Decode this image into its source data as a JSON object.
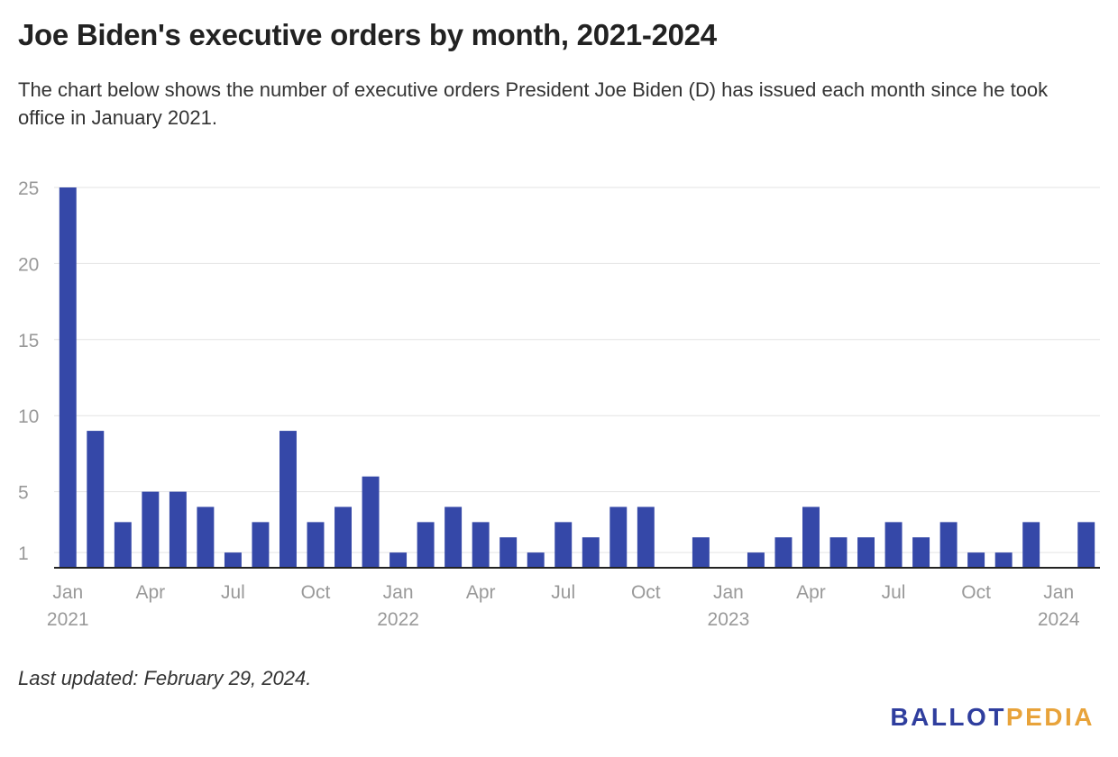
{
  "header": {
    "title": "Joe Biden's executive orders by month, 2021-2024",
    "subtitle": "The chart below shows the number of executive orders President Joe Biden (D) has issued each month since he took office in January 2021."
  },
  "footer": {
    "updated": "Last updated: February 29, 2024.",
    "logo_part1": "BALLOT",
    "logo_part2": "PEDIA"
  },
  "colors": {
    "bar": "#3548a8",
    "grid": "#e3e3e3",
    "axis": "#222222",
    "tick_text": "#999999",
    "logo_primary": "#2f3e9e",
    "logo_accent": "#e8a33a"
  },
  "chart_data": {
    "type": "bar",
    "title": "Joe Biden's executive orders by month, 2021-2024",
    "xlabel": "",
    "ylabel": "",
    "ylim": [
      0,
      25
    ],
    "yticks": [
      1,
      5,
      10,
      15,
      20,
      25
    ],
    "grid": true,
    "categories": [
      "Jan 2021",
      "Feb 2021",
      "Mar 2021",
      "Apr 2021",
      "May 2021",
      "Jun 2021",
      "Jul 2021",
      "Aug 2021",
      "Sep 2021",
      "Oct 2021",
      "Nov 2021",
      "Dec 2021",
      "Jan 2022",
      "Feb 2022",
      "Mar 2022",
      "Apr 2022",
      "May 2022",
      "Jun 2022",
      "Jul 2022",
      "Aug 2022",
      "Sep 2022",
      "Oct 2022",
      "Nov 2022",
      "Dec 2022",
      "Jan 2023",
      "Feb 2023",
      "Mar 2023",
      "Apr 2023",
      "May 2023",
      "Jun 2023",
      "Jul 2023",
      "Aug 2023",
      "Sep 2023",
      "Oct 2023",
      "Nov 2023",
      "Dec 2023",
      "Jan 2024",
      "Feb 2024"
    ],
    "values": [
      25,
      9,
      3,
      5,
      5,
      4,
      1,
      3,
      9,
      3,
      4,
      6,
      1,
      3,
      4,
      3,
      2,
      1,
      3,
      2,
      4,
      4,
      0,
      2,
      0,
      1,
      2,
      4,
      2,
      2,
      3,
      2,
      3,
      1,
      1,
      3,
      0,
      3
    ],
    "xtick_labels": [
      {
        "index": 0,
        "month": "Jan",
        "year": "2021"
      },
      {
        "index": 3,
        "month": "Apr",
        "year": ""
      },
      {
        "index": 6,
        "month": "Jul",
        "year": ""
      },
      {
        "index": 9,
        "month": "Oct",
        "year": ""
      },
      {
        "index": 12,
        "month": "Jan",
        "year": "2022"
      },
      {
        "index": 15,
        "month": "Apr",
        "year": ""
      },
      {
        "index": 18,
        "month": "Jul",
        "year": ""
      },
      {
        "index": 21,
        "month": "Oct",
        "year": ""
      },
      {
        "index": 24,
        "month": "Jan",
        "year": "2023"
      },
      {
        "index": 27,
        "month": "Apr",
        "year": ""
      },
      {
        "index": 30,
        "month": "Jul",
        "year": ""
      },
      {
        "index": 33,
        "month": "Oct",
        "year": ""
      },
      {
        "index": 36,
        "month": "Jan",
        "year": "2024"
      }
    ]
  }
}
